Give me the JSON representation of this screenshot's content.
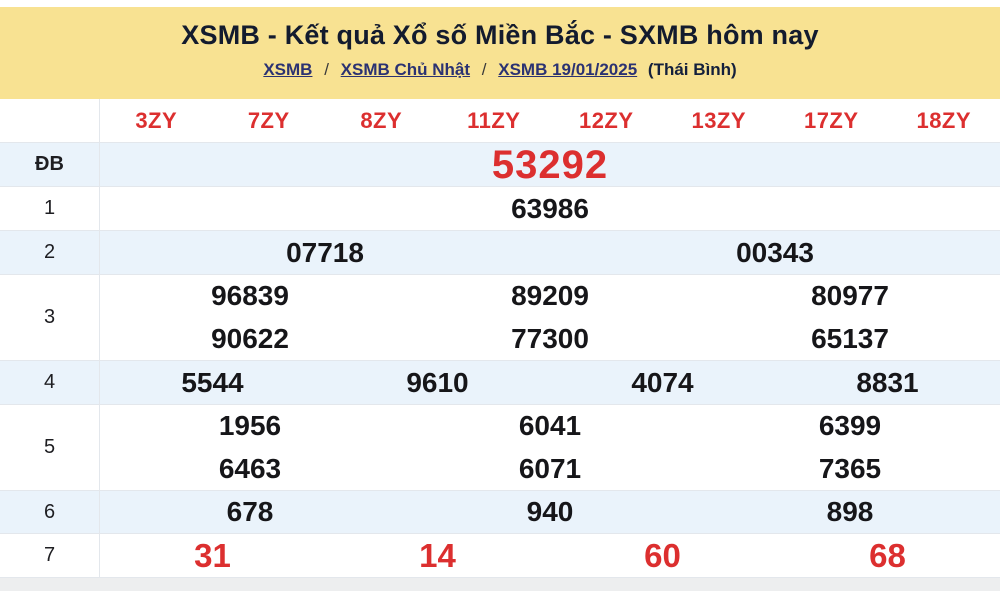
{
  "header": {
    "title": "XSMB - Kết quả Xổ số Miền Bắc - SXMB hôm nay",
    "breadcrumb": {
      "links": [
        "XSMB",
        "XSMB Chủ Nhật",
        "XSMB 19/01/2025"
      ],
      "separator": "/",
      "suffix": "(Thái Bình)"
    }
  },
  "colors": {
    "band_yellow": "#F8E292",
    "accent_red": "#DC2F2F",
    "row_blue": "#EAF3FB",
    "link_navy": "#2B3272"
  },
  "table": {
    "column_headers": [
      "3ZY",
      "7ZY",
      "8ZY",
      "11ZY",
      "12ZY",
      "13ZY",
      "17ZY",
      "18ZY"
    ],
    "rows": [
      {
        "label": "ĐB",
        "values": [
          "53292"
        ]
      },
      {
        "label": "1",
        "values": [
          "63986"
        ]
      },
      {
        "label": "2",
        "values": [
          "07718",
          "00343"
        ]
      },
      {
        "label": "3",
        "values": [
          "96839",
          "89209",
          "80977",
          "90622",
          "77300",
          "65137"
        ]
      },
      {
        "label": "4",
        "values": [
          "5544",
          "9610",
          "4074",
          "8831"
        ]
      },
      {
        "label": "5",
        "values": [
          "1956",
          "6041",
          "6399",
          "6463",
          "6071",
          "7365"
        ]
      },
      {
        "label": "6",
        "values": [
          "678",
          "940",
          "898"
        ]
      },
      {
        "label": "7",
        "values": [
          "31",
          "14",
          "60",
          "68"
        ]
      }
    ]
  }
}
